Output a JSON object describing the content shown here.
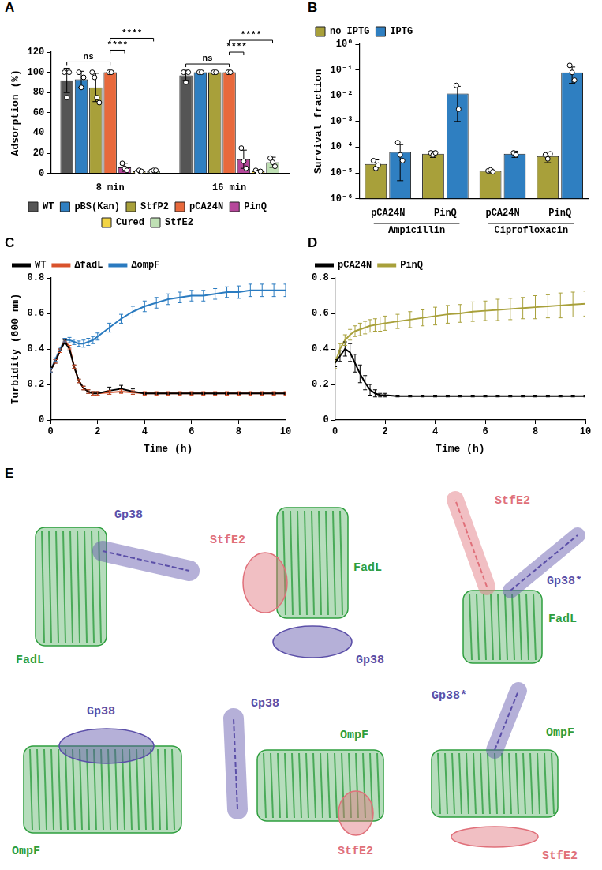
{
  "chart_data": [
    {
      "panel": "A",
      "type": "bar",
      "categories": [
        "8 min",
        "16 min"
      ],
      "y_label": "Adsorption (%)",
      "ylim": [
        0,
        120
      ],
      "yticks": [
        0,
        20,
        40,
        60,
        80,
        100,
        120
      ],
      "grid": false,
      "legend": "bottom",
      "series": [
        {
          "name": "WT",
          "color": "#555555",
          "values": [
            92,
            97
          ],
          "errors": [
            12,
            5
          ],
          "points": [
            [
              100,
              75,
              100
            ],
            [
              100,
              90,
              100
            ]
          ]
        },
        {
          "name": "pBS(Kan)",
          "color": "#2f7fc1",
          "values": [
            93,
            100
          ],
          "errors": [
            8,
            0.5
          ],
          "points": [
            [
              100,
              85,
              95
            ],
            [
              100,
              100
            ]
          ]
        },
        {
          "name": "StfP2",
          "color": "#a8a03a",
          "values": [
            85,
            100
          ],
          "errors": [
            14,
            0.5
          ],
          "points": [
            [
              100,
              95,
              75,
              70
            ],
            [
              100,
              100
            ]
          ]
        },
        {
          "name": "pCA24N",
          "color": "#e8693c",
          "values": [
            100,
            100
          ],
          "errors": [
            0.5,
            0.5
          ],
          "points": [
            [
              100,
              100
            ],
            [
              100,
              100
            ]
          ]
        },
        {
          "name": "PinQ",
          "color": "#b5479a",
          "values": [
            6,
            14
          ],
          "errors": [
            4,
            9
          ],
          "points": [
            [
              10,
              5,
              3
            ],
            [
              25,
              12,
              5
            ]
          ]
        },
        {
          "name": "Cured",
          "color": "#f2d444",
          "values": [
            2,
            2
          ],
          "errors": [
            1.5,
            1.5
          ],
          "points": [
            [
              1,
              3,
              2
            ],
            [
              3,
              1,
              2
            ]
          ]
        },
        {
          "name": "StfE2",
          "color": "#bfe0b4",
          "values": [
            2.5,
            11
          ],
          "errors": [
            1.5,
            5
          ],
          "points": [
            [
              2,
              3,
              3
            ],
            [
              15,
              11,
              7
            ]
          ]
        }
      ],
      "annotations": [
        {
          "category": "8 min",
          "from": "WT",
          "to": "pCA24N",
          "text": "ns"
        },
        {
          "category": "8 min",
          "from": "pCA24N",
          "to": "PinQ",
          "text": "****"
        },
        {
          "category": "8 min",
          "from": "pCA24N",
          "to": "StfE2",
          "text": "****"
        },
        {
          "category": "16 min",
          "from": "WT",
          "to": "pCA24N",
          "text": "ns"
        },
        {
          "category": "16 min",
          "from": "pCA24N",
          "to": "PinQ",
          "text": "****"
        },
        {
          "category": "16 min",
          "from": "pCA24N",
          "to": "StfE2",
          "text": "****"
        }
      ]
    },
    {
      "panel": "B",
      "type": "bar",
      "log": "y",
      "groups": [
        {
          "name": "Ampicillin",
          "categories": [
            "pCA24N",
            "PinQ"
          ]
        },
        {
          "name": "Ciprofloxacin",
          "categories": [
            "pCA24N",
            "PinQ"
          ]
        }
      ],
      "y_label": "Survival fraction",
      "ylim": [
        1e-06,
        1
      ],
      "yticks": [
        {
          "value": 1e-06,
          "label": "10⁻⁶"
        },
        {
          "value": 1e-05,
          "label": "10⁻⁵"
        },
        {
          "value": 0.0001,
          "label": "10⁻⁴"
        },
        {
          "value": 0.001,
          "label": "10⁻³"
        },
        {
          "value": 0.01,
          "label": "10⁻²"
        },
        {
          "value": 0.1,
          "label": "10⁻¹"
        },
        {
          "value": 1,
          "label": "10⁰"
        }
      ],
      "grid": false,
      "legend": "top",
      "series": [
        {
          "name": "no IPTG",
          "color": "#a8a03a",
          "values": [
            2.2e-05,
            5.5e-05,
            1.2e-05,
            4.5e-05
          ],
          "errors": [
            1e-05,
            1.5e-05,
            2e-06,
            2e-05
          ],
          "points": [
            [
              3e-05,
              1.5e-05,
              2e-05
            ],
            [
              6e-05,
              5e-05,
              6e-05
            ],
            [
              1.2e-05,
              1.3e-05,
              1.1e-05
            ],
            [
              5e-05,
              3.5e-05,
              5.5e-05
            ]
          ]
        },
        {
          "name": "IPTG",
          "color": "#2f7fc1",
          "values": [
            6.5e-05,
            0.012,
            5.5e-05,
            0.08
          ],
          "errors": [
            6e-05,
            0.011,
            1.5e-05,
            0.05
          ],
          "points": [
            [
              0.00015,
              5e-05,
              3e-05
            ],
            [
              0.025,
              0.003
            ],
            [
              6e-05,
              5e-05
            ],
            [
              0.15,
              0.08,
              0.04
            ]
          ]
        }
      ]
    },
    {
      "panel": "C",
      "type": "line",
      "x_label": "Time (h)",
      "y_label": "Turbidity (600 nm)",
      "xlim": [
        0,
        10
      ],
      "xticks": [
        0,
        2,
        4,
        6,
        8,
        10
      ],
      "ylim": [
        0,
        0.8
      ],
      "yticks": [
        0,
        0.2,
        0.4,
        0.6,
        0.8
      ],
      "grid": false,
      "legend": "top",
      "x": [
        0,
        0.2,
        0.4,
        0.6,
        0.8,
        1,
        1.2,
        1.4,
        1.6,
        1.8,
        2,
        2.5,
        3,
        3.5,
        4,
        4.5,
        5,
        5.5,
        6,
        6.5,
        7,
        7.5,
        8,
        8.5,
        9,
        9.5,
        10
      ],
      "series": [
        {
          "name": "WT",
          "color": "#000000",
          "values": [
            0.28,
            0.33,
            0.39,
            0.44,
            0.4,
            0.3,
            0.22,
            0.18,
            0.16,
            0.15,
            0.15,
            0.165,
            0.175,
            0.16,
            0.15,
            0.15,
            0.15,
            0.15,
            0.15,
            0.15,
            0.15,
            0.15,
            0.15,
            0.15,
            0.15,
            0.15,
            0.15
          ],
          "errors": [
            0.01,
            0.01,
            0.01,
            0.01,
            0.01,
            0.01,
            0.01,
            0.01,
            0.01,
            0.01,
            0.01,
            0.02,
            0.02,
            0.015,
            0.005,
            0.005,
            0.005,
            0.005,
            0.005,
            0.005,
            0.005,
            0.005,
            0.005,
            0.005,
            0.005,
            0.005,
            0.005
          ]
        },
        {
          "name": "ΔfadL",
          "color": "#d9532c",
          "values": [
            0.28,
            0.33,
            0.39,
            0.45,
            0.41,
            0.3,
            0.22,
            0.18,
            0.16,
            0.15,
            0.15,
            0.155,
            0.16,
            0.155,
            0.15,
            0.15,
            0.15,
            0.15,
            0.15,
            0.15,
            0.15,
            0.15,
            0.15,
            0.15,
            0.15,
            0.15,
            0.15
          ],
          "errors": [
            0.01,
            0.01,
            0.01,
            0.01,
            0.01,
            0.01,
            0.01,
            0.01,
            0.01,
            0.01,
            0.01,
            0.01,
            0.01,
            0.01,
            0.01,
            0.01,
            0.01,
            0.01,
            0.01,
            0.01,
            0.01,
            0.01,
            0.01,
            0.01,
            0.01,
            0.01,
            0.01
          ]
        },
        {
          "name": "ΔompF",
          "color": "#2a7bc0",
          "values": [
            0.28,
            0.34,
            0.4,
            0.45,
            0.45,
            0.44,
            0.43,
            0.43,
            0.44,
            0.45,
            0.47,
            0.52,
            0.57,
            0.61,
            0.64,
            0.66,
            0.68,
            0.69,
            0.7,
            0.7,
            0.71,
            0.72,
            0.72,
            0.73,
            0.73,
            0.73,
            0.73
          ],
          "errors": [
            0.01,
            0.01,
            0.01,
            0.01,
            0.015,
            0.015,
            0.015,
            0.02,
            0.02,
            0.02,
            0.02,
            0.025,
            0.025,
            0.03,
            0.03,
            0.03,
            0.03,
            0.03,
            0.03,
            0.03,
            0.03,
            0.03,
            0.035,
            0.035,
            0.035,
            0.035,
            0.035
          ]
        }
      ]
    },
    {
      "panel": "D",
      "type": "line",
      "x_label": "Time (h)",
      "xlim": [
        0,
        10
      ],
      "xticks": [
        0,
        2,
        4,
        6,
        8,
        10
      ],
      "ylim": [
        0,
        0.8
      ],
      "yticks": [
        0,
        0.2,
        0.4,
        0.6,
        0.8
      ],
      "grid": false,
      "legend": "top",
      "x": [
        0,
        0.2,
        0.4,
        0.6,
        0.8,
        1,
        1.2,
        1.4,
        1.6,
        1.8,
        2,
        2.5,
        3,
        3.5,
        4,
        4.5,
        5,
        5.5,
        6,
        6.5,
        7,
        7.5,
        8,
        8.5,
        9,
        9.5,
        10
      ],
      "series": [
        {
          "name": "pCA24N",
          "color": "#000000",
          "values": [
            0.32,
            0.36,
            0.4,
            0.38,
            0.32,
            0.26,
            0.21,
            0.17,
            0.15,
            0.14,
            0.14,
            0.135,
            0.135,
            0.135,
            0.135,
            0.135,
            0.135,
            0.135,
            0.135,
            0.135,
            0.135,
            0.135,
            0.135,
            0.135,
            0.135,
            0.135,
            0.135
          ],
          "errors": [
            0.02,
            0.03,
            0.04,
            0.05,
            0.05,
            0.05,
            0.04,
            0.03,
            0.02,
            0.01,
            0.01,
            0.005,
            0.005,
            0.005,
            0.005,
            0.005,
            0.005,
            0.005,
            0.005,
            0.005,
            0.005,
            0.005,
            0.005,
            0.005,
            0.005,
            0.005,
            0.005
          ]
        },
        {
          "name": "PinQ",
          "color": "#a8a03a",
          "values": [
            0.32,
            0.4,
            0.45,
            0.48,
            0.5,
            0.51,
            0.52,
            0.53,
            0.535,
            0.54,
            0.545,
            0.555,
            0.565,
            0.575,
            0.585,
            0.595,
            0.6,
            0.61,
            0.615,
            0.62,
            0.625,
            0.63,
            0.635,
            0.64,
            0.645,
            0.65,
            0.655
          ],
          "errors": [
            0.03,
            0.03,
            0.03,
            0.03,
            0.03,
            0.035,
            0.035,
            0.035,
            0.035,
            0.04,
            0.04,
            0.04,
            0.045,
            0.045,
            0.05,
            0.05,
            0.05,
            0.055,
            0.055,
            0.06,
            0.06,
            0.06,
            0.065,
            0.065,
            0.07,
            0.07,
            0.07
          ]
        }
      ]
    }
  ],
  "panel_E": {
    "label": "E",
    "structures": [
      {
        "items": [
          {
            "text": "FadL",
            "color": "#2e9e3e"
          },
          {
            "text": "Gp38",
            "color": "#5b4fa8"
          }
        ]
      },
      {
        "items": [
          {
            "text": "FadL",
            "color": "#2e9e3e"
          },
          {
            "text": "StfE2",
            "color": "#e0707a"
          },
          {
            "text": "Gp38",
            "color": "#5b4fa8"
          }
        ]
      },
      {
        "items": [
          {
            "text": "FadL",
            "color": "#2e9e3e"
          },
          {
            "text": "StfE2",
            "color": "#e0707a"
          },
          {
            "text": "Gp38*",
            "color": "#5b4fa8"
          }
        ]
      },
      {
        "items": [
          {
            "text": "OmpF",
            "color": "#2e9e3e"
          },
          {
            "text": "Gp38",
            "color": "#5b4fa8"
          }
        ]
      },
      {
        "items": [
          {
            "text": "OmpF",
            "color": "#2e9e3e"
          },
          {
            "text": "Gp38",
            "color": "#5b4fa8"
          },
          {
            "text": "StfE2",
            "color": "#e0707a"
          }
        ]
      },
      {
        "items": [
          {
            "text": "OmpF",
            "color": "#2e9e3e"
          },
          {
            "text": "Gp38*",
            "color": "#5b4fa8"
          },
          {
            "text": "StfE2",
            "color": "#e0707a"
          }
        ]
      }
    ]
  }
}
